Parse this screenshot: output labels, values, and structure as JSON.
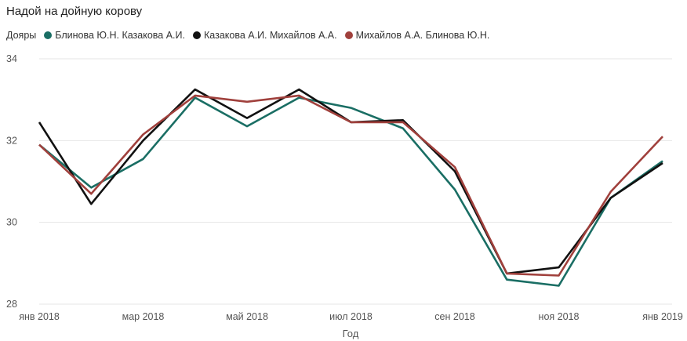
{
  "chart_data": {
    "type": "line",
    "title": "Надой на дойную корову",
    "legend_title": "Дояры",
    "legend_position": "top-left",
    "xlabel": "Год",
    "ylabel": "",
    "ylim": [
      28,
      34
    ],
    "yticks": [
      28,
      30,
      32,
      34
    ],
    "x": [
      "2018-01",
      "2018-02",
      "2018-03",
      "2018-04",
      "2018-05",
      "2018-06",
      "2018-07",
      "2018-08",
      "2018-09",
      "2018-10",
      "2018-11",
      "2018-12",
      "2019-01"
    ],
    "xtick_labels": [
      "янв 2018",
      "мар 2018",
      "май 2018",
      "июл 2018",
      "сен 2018",
      "ноя 2018",
      "янв 2019"
    ],
    "xtick_index": [
      0,
      2,
      4,
      6,
      8,
      10,
      12
    ],
    "grid": true,
    "series": [
      {
        "name": "Блинова Ю.Н. Казакова А.И.",
        "color": "#1a6e64",
        "values": [
          31.9,
          30.85,
          31.55,
          33.05,
          32.35,
          33.05,
          32.8,
          32.3,
          30.8,
          28.6,
          28.45,
          30.6,
          31.5
        ]
      },
      {
        "name": "Казакова А.И. Михайлов А.А.",
        "color": "#111111",
        "values": [
          32.45,
          30.45,
          32.0,
          33.25,
          32.55,
          33.25,
          32.45,
          32.5,
          31.25,
          28.75,
          28.9,
          30.6,
          31.45
        ]
      },
      {
        "name": "Михайлов А.А. Блинова Ю.Н.",
        "color": "#a0403c",
        "values": [
          31.9,
          30.7,
          32.15,
          33.1,
          32.95,
          33.1,
          32.45,
          32.45,
          31.35,
          28.75,
          28.7,
          30.75,
          32.1
        ]
      }
    ]
  }
}
